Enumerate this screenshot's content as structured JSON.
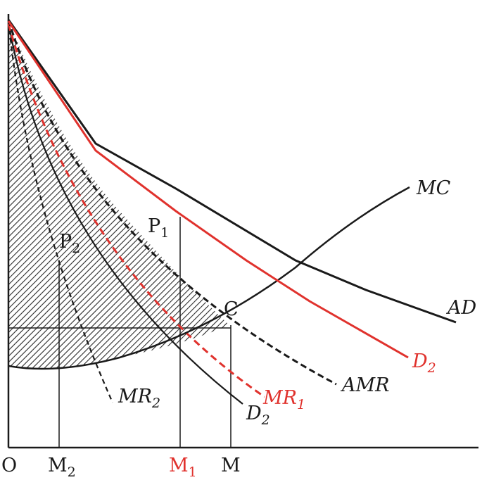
{
  "labels": {
    "mc": "MC",
    "ad": "AD",
    "amr": "AMR",
    "d2_red": "D",
    "d2_red_sub": "2",
    "mr1": "MR",
    "mr1_sub": "1",
    "mr2": "MR",
    "mr2_sub": "2",
    "d2_black": "D",
    "d2_black_sub": "2",
    "c": "C",
    "p1": "P",
    "p1_sub": "1",
    "p2": "P",
    "p2_sub": "2",
    "origin": "O",
    "m2": "M",
    "m2_sub": "2",
    "m1": "M",
    "m1_sub": "1",
    "m": "M"
  },
  "colors": {
    "ink": "#1a1a1a",
    "red": "#e0322d",
    "hatch": "#2a2a2a"
  }
}
